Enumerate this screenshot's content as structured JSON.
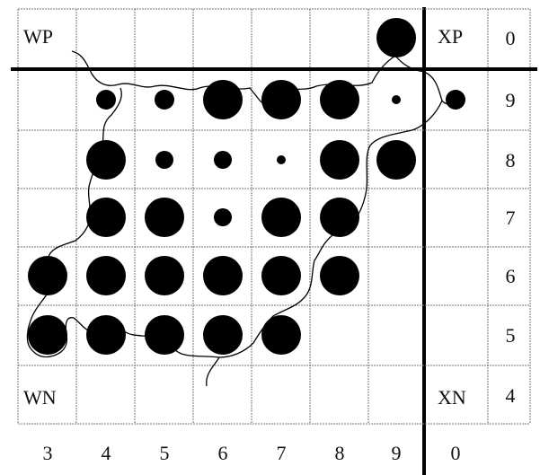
{
  "corner_labels": {
    "wp": "WP",
    "xp": "XP",
    "wn": "WN",
    "xn": "XN"
  },
  "column_labels": [
    "3",
    "4",
    "5",
    "6",
    "7",
    "8",
    "9",
    "0"
  ],
  "row_labels": [
    "0",
    "9",
    "8",
    "7",
    "6",
    "5",
    "4"
  ],
  "dots": [
    {
      "row": "0",
      "col": "9",
      "size": "large"
    },
    {
      "row": "9",
      "col": "4",
      "size": "medium"
    },
    {
      "row": "9",
      "col": "5",
      "size": "medium"
    },
    {
      "row": "9",
      "col": "6",
      "size": "large"
    },
    {
      "row": "9",
      "col": "7",
      "size": "large"
    },
    {
      "row": "9",
      "col": "8",
      "size": "large"
    },
    {
      "row": "9",
      "col": "9",
      "size": "tiny"
    },
    {
      "row": "9",
      "col": "0",
      "size": "medium"
    },
    {
      "row": "8",
      "col": "4",
      "size": "large"
    },
    {
      "row": "8",
      "col": "5",
      "size": "small"
    },
    {
      "row": "8",
      "col": "6",
      "size": "small"
    },
    {
      "row": "8",
      "col": "7",
      "size": "tiny"
    },
    {
      "row": "8",
      "col": "8",
      "size": "large"
    },
    {
      "row": "8",
      "col": "9",
      "size": "large"
    },
    {
      "row": "7",
      "col": "4",
      "size": "large"
    },
    {
      "row": "7",
      "col": "5",
      "size": "large"
    },
    {
      "row": "7",
      "col": "6",
      "size": "small"
    },
    {
      "row": "7",
      "col": "7",
      "size": "large"
    },
    {
      "row": "7",
      "col": "8",
      "size": "large"
    },
    {
      "row": "6",
      "col": "3",
      "size": "large"
    },
    {
      "row": "6",
      "col": "4",
      "size": "large"
    },
    {
      "row": "6",
      "col": "5",
      "size": "large"
    },
    {
      "row": "6",
      "col": "6",
      "size": "large"
    },
    {
      "row": "6",
      "col": "7",
      "size": "large"
    },
    {
      "row": "6",
      "col": "8",
      "size": "large"
    },
    {
      "row": "5",
      "col": "3",
      "size": "large"
    },
    {
      "row": "5",
      "col": "4",
      "size": "large"
    },
    {
      "row": "5",
      "col": "5",
      "size": "large"
    },
    {
      "row": "5",
      "col": "6",
      "size": "large"
    },
    {
      "row": "5",
      "col": "7",
      "size": "large"
    }
  ],
  "colors": {
    "ink": "#000000",
    "grid": "#777777",
    "background": "#ffffff"
  }
}
